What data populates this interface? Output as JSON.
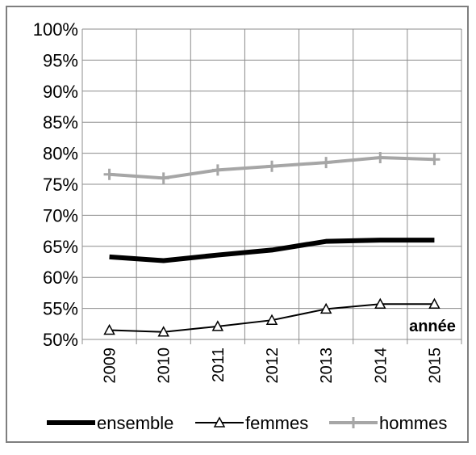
{
  "chart_data": {
    "type": "line",
    "categories": [
      "2009",
      "2010",
      "2011",
      "2012",
      "2013",
      "2014",
      "2015"
    ],
    "ylim": [
      0.5,
      1.0
    ],
    "yticks": [
      "50%",
      "55%",
      "60%",
      "65%",
      "70%",
      "75%",
      "80%",
      "85%",
      "90%",
      "95%",
      "100%"
    ],
    "grid": true,
    "legend_position": "bottom",
    "annotation": "année",
    "series": [
      {
        "name": "ensemble",
        "values": [
          0.633,
          0.627,
          0.636,
          0.644,
          0.658,
          0.66,
          0.66
        ],
        "color": "#000000",
        "marker": "none"
      },
      {
        "name": "femmes",
        "values": [
          0.515,
          0.512,
          0.521,
          0.531,
          0.549,
          0.557,
          0.557
        ],
        "color": "#000000",
        "marker": "triangle"
      },
      {
        "name": "hommes",
        "values": [
          0.766,
          0.76,
          0.773,
          0.779,
          0.785,
          0.793,
          0.79
        ],
        "color": "#a6a6a6",
        "marker": "plus"
      }
    ]
  }
}
